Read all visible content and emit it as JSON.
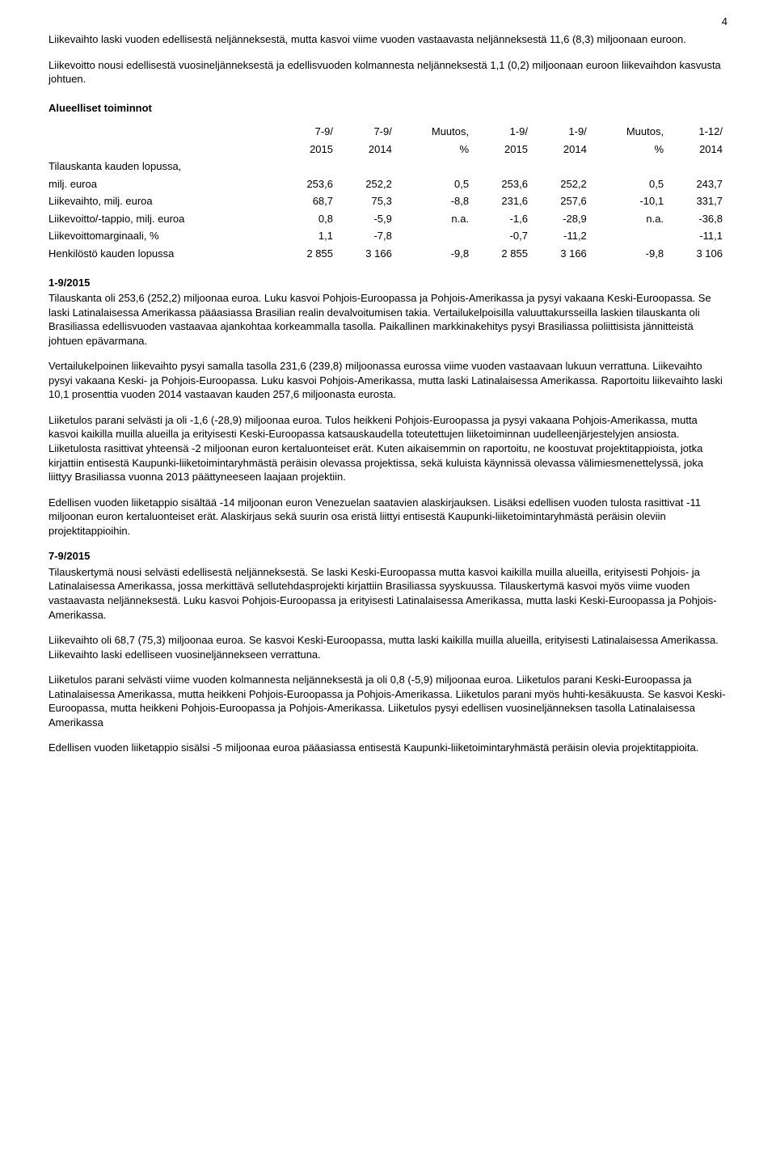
{
  "page_number": "4",
  "intro_p1": "Liikevaihto laski vuoden edellisestä neljänneksestä, mutta kasvoi viime vuoden vastaavasta neljänneksestä 11,6 (8,3) miljoonaan euroon.",
  "intro_p2": "Liikevoitto nousi edellisestä vuosineljänneksestä ja edellisvuoden kolmannesta neljänneksestä 1,1 (0,2) miljoonaan euroon liikevaihdon kasvusta johtuen.",
  "section_title": "Alueelliset toiminnot",
  "table": {
    "col_headers": [
      [
        "7-9/",
        "2015"
      ],
      [
        "7-9/",
        "2014"
      ],
      [
        "Muutos,",
        "%"
      ],
      [
        "1-9/",
        "2015"
      ],
      [
        "1-9/",
        "2014"
      ],
      [
        "Muutos,",
        "%"
      ],
      [
        "1-12/",
        "2014"
      ]
    ],
    "rows": [
      {
        "label_line1": "Tilauskanta kauden lopussa,",
        "label_line2": "milj. euroa",
        "cells": [
          "253,6",
          "252,2",
          "0,5",
          "253,6",
          "252,2",
          "0,5",
          "243,7"
        ]
      },
      {
        "label": "Liikevaihto, milj. euroa",
        "cells": [
          "68,7",
          "75,3",
          "-8,8",
          "231,6",
          "257,6",
          "-10,1",
          "331,7"
        ]
      },
      {
        "label": "Liikevoitto/-tappio, milj. euroa",
        "cells": [
          "0,8",
          "-5,9",
          "n.a.",
          "-1,6",
          "-28,9",
          "n.a.",
          "-36,8"
        ]
      },
      {
        "label": "Liikevoittomarginaali, %",
        "cells": [
          "1,1",
          "-7,8",
          "",
          "-0,7",
          "-11,2",
          "",
          "-11,1"
        ]
      },
      {
        "label": "Henkilöstö kauden lopussa",
        "cells": [
          "2 855",
          "3 166",
          "-9,8",
          "2 855",
          "3 166",
          "-9,8",
          "3 106"
        ]
      }
    ]
  },
  "sec1_head": "1-9/2015",
  "sec1_p1": "Tilauskanta oli 253,6 (252,2) miljoonaa euroa. Luku kasvoi Pohjois-Euroopassa ja Pohjois-Amerikassa ja pysyi vakaana Keski-Euroopassa. Se laski Latinalaisessa Amerikassa pääasiassa Brasilian realin devalvoitumisen takia. Vertailukelpoisilla valuuttakursseilla laskien tilauskanta oli Brasiliassa edellisvuoden vastaavaa ajankohtaa korkeammalla tasolla. Paikallinen markkinakehitys pysyi Brasiliassa poliittisista jännitteistä johtuen epävarmana.",
  "sec1_p2": "Vertailukelpoinen liikevaihto pysyi samalla tasolla 231,6 (239,8) miljoonassa eurossa viime vuoden vastaavaan lukuun verrattuna. Liikevaihto pysyi vakaana Keski- ja Pohjois-Euroopassa. Luku kasvoi Pohjois-Amerikassa, mutta laski Latinalaisessa Amerikassa. Raportoitu liikevaihto laski 10,1 prosenttia vuoden 2014 vastaavan kauden 257,6 miljoonasta eurosta.",
  "sec1_p3": "Liiketulos parani selvästi ja oli -1,6 (-28,9) miljoonaa euroa. Tulos heikkeni Pohjois-Euroopassa ja pysyi vakaana Pohjois-Amerikassa, mutta kasvoi kaikilla muilla alueilla ja erityisesti Keski-Euroopassa katsauskaudella toteutettujen liiketoiminnan uudelleenjärjestelyjen ansiosta. Liiketulosta rasittivat yhteensä -2 miljoonan euron kertaluonteiset erät. Kuten aikaisemmin on raportoitu, ne koostuvat projektitappioista, jotka kirjattiin entisestä Kaupunki-liiketoimintaryhmästä peräisin olevassa projektissa, sekä kuluista käynnissä olevassa välimiesmenettelyssä, joka liittyy Brasiliassa vuonna 2013 päättyneeseen laajaan projektiin.",
  "sec1_p4": "Edellisen vuoden liiketappio sisältää -14 miljoonan euron Venezuelan saatavien alaskirjauksen. Lisäksi edellisen vuoden tulosta rasittivat -11 miljoonan euron kertaluonteiset erät. Alaskirjaus sekä suurin osa eristä liittyi entisestä Kaupunki-liiketoimintaryhmästä peräisin oleviin projektitappioihin.",
  "sec2_head": "7-9/2015",
  "sec2_p1": "Tilauskertymä nousi selvästi edellisestä neljänneksestä. Se laski Keski-Euroopassa mutta kasvoi kaikilla muilla alueilla, erityisesti Pohjois- ja Latinalaisessa Amerikassa, jossa merkittävä sellutehdasprojekti kirjattiin Brasiliassa syyskuussa. Tilauskertymä kasvoi myös viime vuoden vastaavasta neljänneksestä. Luku kasvoi Pohjois-Euroopassa ja erityisesti Latinalaisessa Amerikassa, mutta laski Keski-Euroopassa ja Pohjois-Amerikassa.",
  "sec2_p2": "Liikevaihto oli 68,7 (75,3) miljoonaa euroa. Se kasvoi Keski-Euroopassa, mutta laski kaikilla muilla alueilla, erityisesti Latinalaisessa Amerikassa. Liikevaihto laski edelliseen vuosineljännekseen verrattuna.",
  "sec2_p3": "Liiketulos parani selvästi viime vuoden kolmannesta neljänneksestä ja oli 0,8 (-5,9) miljoonaa euroa. Liiketulos parani Keski-Euroopassa ja Latinalaisessa Amerikassa, mutta heikkeni Pohjois-Euroopassa ja Pohjois-Amerikassa. Liiketulos parani myös huhti-kesäkuusta. Se kasvoi Keski-Euroopassa, mutta heikkeni Pohjois-Euroopassa ja Pohjois-Amerikassa. Liiketulos pysyi edellisen vuosineljänneksen tasolla Latinalaisessa Amerikassa",
  "sec2_p4": "Edellisen vuoden liiketappio sisälsi -5 miljoonaa euroa pääasiassa entisestä Kaupunki-liiketoimintaryhmästä peräisin olevia projektitappioita."
}
